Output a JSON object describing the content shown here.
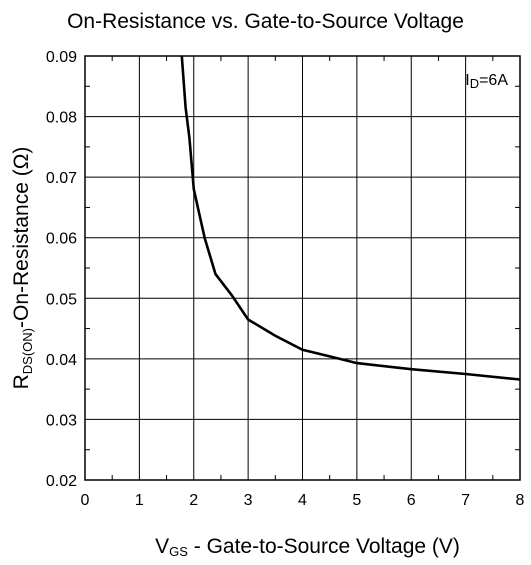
{
  "chart_data": {
    "type": "line",
    "title": "On-Resistance vs. Gate-to-Source Voltage",
    "xlabel": {
      "main": "V",
      "sub": "GS",
      "rest": " - Gate-to-Source Voltage (V)"
    },
    "ylabel": {
      "main": "R",
      "sub": "DS(ON)",
      "rest": "-On-Resistance (Ω)"
    },
    "xlim": [
      0,
      8
    ],
    "ylim": [
      0.02,
      0.09
    ],
    "x_ticks": [
      "0",
      "1",
      "2",
      "3",
      "4",
      "5",
      "6",
      "7",
      "8"
    ],
    "y_ticks": [
      "0.02",
      "0.03",
      "0.04",
      "0.05",
      "0.06",
      "0.07",
      "0.08",
      "0.09"
    ],
    "grid": true,
    "annotation": {
      "main": "I",
      "sub": "D",
      "rest": "=6A"
    },
    "series": [
      {
        "x": [
          1.78,
          1.85,
          1.92,
          2.0,
          2.2,
          2.4,
          2.7,
          3.0,
          3.5,
          4.0,
          4.5,
          5.0,
          6.0,
          7.0,
          8.0
        ],
        "y": [
          0.09,
          0.0815,
          0.0765,
          0.068,
          0.06,
          0.054,
          0.0505,
          0.0465,
          0.0438,
          0.0415,
          0.0404,
          0.0393,
          0.0383,
          0.0375,
          0.0366
        ]
      }
    ]
  }
}
